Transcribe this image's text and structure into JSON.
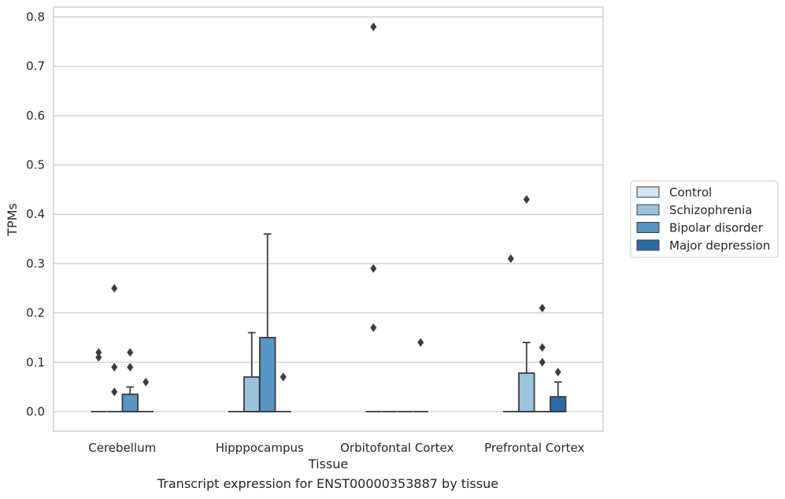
{
  "caption": "Transcript expression for ENST00000353887 by tissue",
  "chart_data": {
    "type": "box",
    "xlabel": "Tissue",
    "ylabel": "TPMs",
    "ylim": [
      -0.04,
      0.82
    ],
    "yticks": [
      0.0,
      0.1,
      0.2,
      0.3,
      0.4,
      0.5,
      0.6,
      0.7,
      0.8
    ],
    "ytick_labels": [
      "0.0",
      "0.1",
      "0.2",
      "0.3",
      "0.4",
      "0.5",
      "0.6",
      "0.7",
      "0.8"
    ],
    "categories": [
      "Cerebellum",
      "Hipppocampus",
      "Orbitofontal Cortex",
      "Prefrontal Cortex"
    ],
    "grid": true,
    "legend_position": "right",
    "series": [
      {
        "name": "Control",
        "color": "#d3e4f3",
        "boxes": [
          {
            "q1": 0,
            "median": 0,
            "q3": 0,
            "whisker_low": 0,
            "whisker_high": 0,
            "outliers": [
              0.11,
              0.12
            ]
          },
          {
            "q1": 0,
            "median": 0,
            "q3": 0,
            "whisker_low": 0,
            "whisker_high": 0,
            "outliers": []
          },
          {
            "q1": 0,
            "median": 0,
            "q3": 0,
            "whisker_low": 0,
            "whisker_high": 0,
            "outliers": [
              0.17,
              0.29,
              0.78
            ]
          },
          {
            "q1": 0,
            "median": 0,
            "q3": 0,
            "whisker_low": 0,
            "whisker_high": 0,
            "outliers": [
              0.31
            ]
          }
        ]
      },
      {
        "name": "Schizophrenia",
        "color": "#9ac3de",
        "boxes": [
          {
            "q1": 0,
            "median": 0,
            "q3": 0,
            "whisker_low": 0,
            "whisker_high": 0,
            "outliers": [
              0.04,
              0.09,
              0.25
            ]
          },
          {
            "q1": 0,
            "median": 0,
            "q3": 0.07,
            "whisker_low": 0,
            "whisker_high": 0.16,
            "outliers": []
          },
          {
            "q1": 0,
            "median": 0,
            "q3": 0,
            "whisker_low": 0,
            "whisker_high": 0,
            "outliers": []
          },
          {
            "q1": 0,
            "median": 0,
            "q3": 0.078,
            "whisker_low": 0,
            "whisker_high": 0.14,
            "outliers": [
              0.43
            ]
          }
        ]
      },
      {
        "name": "Bipolar disorder",
        "color": "#5596c5",
        "boxes": [
          {
            "q1": 0,
            "median": 0,
            "q3": 0.035,
            "whisker_low": 0,
            "whisker_high": 0.05,
            "outliers": [
              0.09,
              0.12
            ]
          },
          {
            "q1": 0,
            "median": 0,
            "q3": 0.15,
            "whisker_low": 0,
            "whisker_high": 0.36,
            "outliers": []
          },
          {
            "q1": 0,
            "median": 0,
            "q3": 0,
            "whisker_low": 0,
            "whisker_high": 0,
            "outliers": []
          },
          {
            "q1": 0,
            "median": 0,
            "q3": 0,
            "whisker_low": 0,
            "whisker_high": 0,
            "outliers": [
              0.1,
              0.13,
              0.21
            ]
          }
        ]
      },
      {
        "name": "Major depression",
        "color": "#2a6aa8",
        "boxes": [
          {
            "q1": 0,
            "median": 0,
            "q3": 0,
            "whisker_low": 0,
            "whisker_high": 0,
            "outliers": [
              0.06
            ]
          },
          {
            "q1": 0,
            "median": 0,
            "q3": 0,
            "whisker_low": 0,
            "whisker_high": 0,
            "outliers": [
              0.07
            ]
          },
          {
            "q1": 0,
            "median": 0,
            "q3": 0,
            "whisker_low": 0,
            "whisker_high": 0,
            "outliers": [
              0.14
            ]
          },
          {
            "q1": 0,
            "median": 0,
            "q3": 0.03,
            "whisker_low": 0,
            "whisker_high": 0.06,
            "outliers": [
              0.08
            ]
          }
        ]
      }
    ]
  }
}
